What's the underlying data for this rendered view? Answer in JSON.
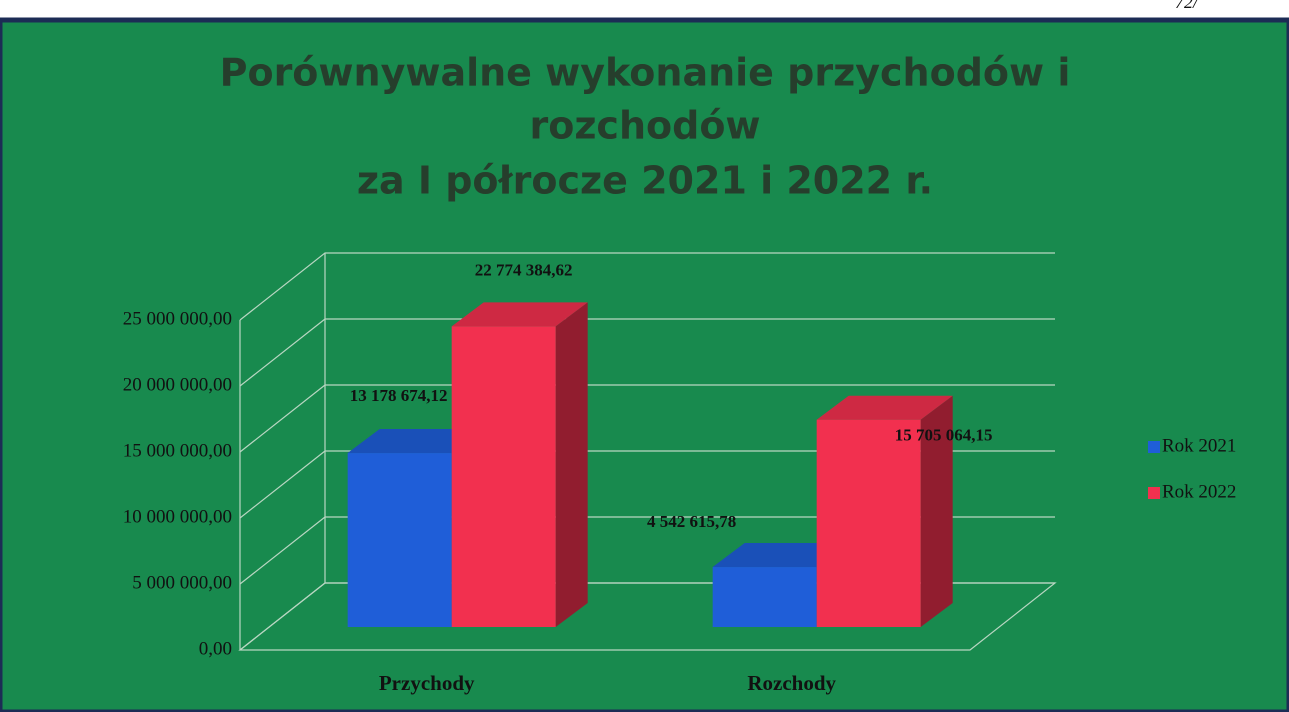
{
  "page_mark": "72/",
  "chart_data": {
    "type": "bar3d",
    "title": [
      "Porównywalne wykonanie przychodów i",
      "rozchodów",
      "za I półrocze 2021 i 2022 r."
    ],
    "categories": [
      "Przychody",
      "Rozchody"
    ],
    "series": [
      {
        "name": "Rok 2021",
        "color": "#1f5ed8",
        "values": [
          13178674.12,
          4542615.78
        ],
        "value_labels": [
          "13 178 674,12",
          "4 542 615,78"
        ]
      },
      {
        "name": "Rok 2022",
        "color": "#f2304f",
        "values": [
          22774384.62,
          15705064.15
        ],
        "value_labels": [
          "22 774 384,62",
          "15 705 064,15"
        ]
      }
    ],
    "ylim": [
      0,
      25000000
    ],
    "yticks": [
      {
        "value": 0,
        "label": "0,00"
      },
      {
        "value": 5000000,
        "label": "5 000 000,00"
      },
      {
        "value": 10000000,
        "label": "10 000 000,00"
      },
      {
        "value": 15000000,
        "label": "15 000 000,00"
      },
      {
        "value": 20000000,
        "label": "20 000 000,00"
      },
      {
        "value": 25000000,
        "label": "25 000 000,00"
      }
    ],
    "grid": true,
    "legend": "right"
  }
}
